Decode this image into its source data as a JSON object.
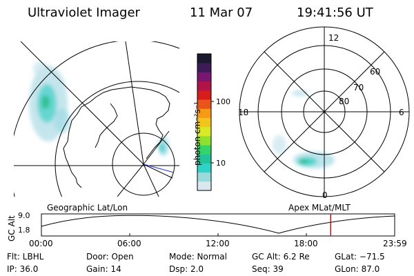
{
  "header": {
    "instrument": "Ultraviolet Imager",
    "date": "11 Mar 07",
    "time": "19:41:56 UT"
  },
  "geographic_panel": {
    "label": "Geographic Lat/Lon"
  },
  "mlt_panel": {
    "label": "Apex MLat/MLT",
    "hour_labels": {
      "top": "12",
      "right": "6",
      "bottom": "0",
      "left": "18"
    },
    "lat_labels": [
      "60",
      "70",
      "80"
    ]
  },
  "colorbar": {
    "label": "photon cm⁻²s⁻¹",
    "scale": "log",
    "tick_labels": [
      "100",
      "10"
    ],
    "colors": [
      "#d8e8ee",
      "#9ad9dc",
      "#2fd2c8",
      "#22c39a",
      "#35d36a",
      "#8fe12f",
      "#d8ea26",
      "#f2c51e",
      "#f59a15",
      "#e8541a",
      "#d61c1c",
      "#b21347",
      "#7a1670",
      "#3e1a58",
      "#1a1a2e"
    ]
  },
  "altitude_plot": {
    "ylabel": "GC Alt",
    "y_tick_labels": [
      "9.0",
      "1.8"
    ],
    "x_tick_labels": [
      "00:00",
      "06:00",
      "12:00",
      "18:00",
      "23:59"
    ],
    "current_time_fraction": 0.819,
    "marker_color": "#dd0000"
  },
  "info": {
    "flt": "Flt: LBHL",
    "ip": "IP: 36.0",
    "door": "Door: Open",
    "gain": "Gain: 14",
    "mode": "Mode: Normal",
    "dsp": "Dsp:     2.0",
    "gc_alt": "GC Alt: 6.2 Re",
    "seq": "Seq: 39",
    "glat": "GLat: −71.5",
    "glon": "GLon:  87.0"
  }
}
